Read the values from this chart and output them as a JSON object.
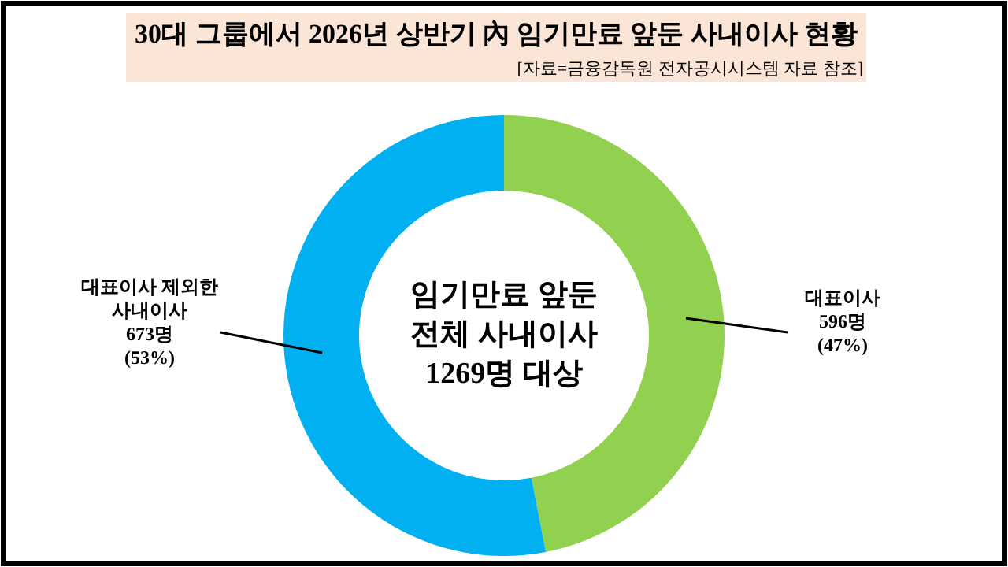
{
  "chart_data": {
    "type": "donut",
    "title": "30대 그룹에서 2026년 상반기 內 임기만료 앞둔 사내이사 현황",
    "categories": [
      "대표이사",
      "대표이사 제외한 사내이사"
    ],
    "values": [
      596,
      673
    ],
    "colors": [
      "#92d050",
      "#00b0f0"
    ],
    "value_labels": [
      "596명 (47%)",
      "673명 (53%)"
    ],
    "annotations": [
      "[자료=금융감독원 전자공시시스템 자료 참조]",
      "임기만료 앞둔 전체 사내이사 1269명 대상"
    ],
    "legend": false
  }
}
